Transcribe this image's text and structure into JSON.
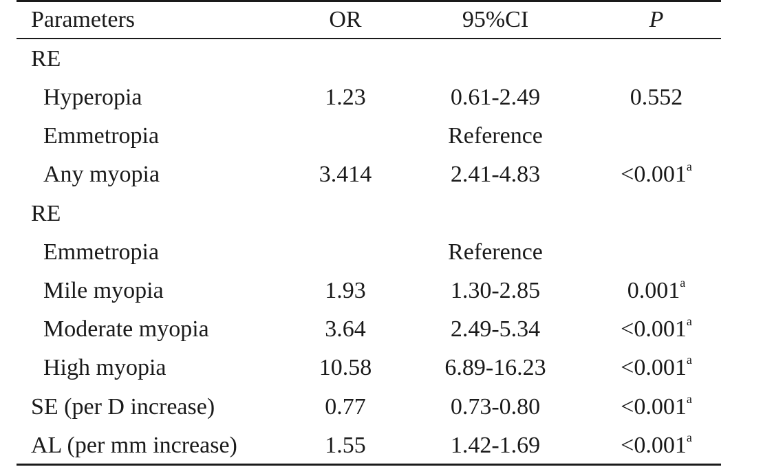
{
  "table": {
    "headers": {
      "parameters": "Parameters",
      "or": "OR",
      "ci": "95%CI",
      "p": "P"
    },
    "rows": [
      {
        "type": "section",
        "label": "RE"
      },
      {
        "type": "data",
        "label": "Hyperopia",
        "or": "1.23",
        "ci": "0.61-2.49",
        "p": "0.552",
        "sup": ""
      },
      {
        "type": "reference",
        "label": "Emmetropia",
        "ref": "Reference"
      },
      {
        "type": "data",
        "label": "Any myopia",
        "or": "3.414",
        "ci": "2.41-4.83",
        "p": "<0.001",
        "sup": "a"
      },
      {
        "type": "section",
        "label": "RE"
      },
      {
        "type": "reference",
        "label": "Emmetropia",
        "ref": "Reference"
      },
      {
        "type": "data",
        "label": "Mile myopia",
        "or": "1.93",
        "ci": "1.30-2.85",
        "p": "0.001",
        "sup": "a"
      },
      {
        "type": "data",
        "label": "Moderate myopia",
        "or": "3.64",
        "ci": "2.49-5.34",
        "p": "<0.001",
        "sup": "a"
      },
      {
        "type": "data",
        "label": "High myopia",
        "or": "10.58",
        "ci": "6.89-16.23",
        "p": "<0.001",
        "sup": "a"
      },
      {
        "type": "data-top",
        "label": "SE (per D increase)",
        "or": "0.77",
        "ci": "0.73-0.80",
        "p": "<0.001",
        "sup": "a"
      },
      {
        "type": "data-top",
        "label": "AL (per mm increase)",
        "or": "1.55",
        "ci": "1.42-1.69",
        "p": "<0.001",
        "sup": "a"
      }
    ]
  }
}
